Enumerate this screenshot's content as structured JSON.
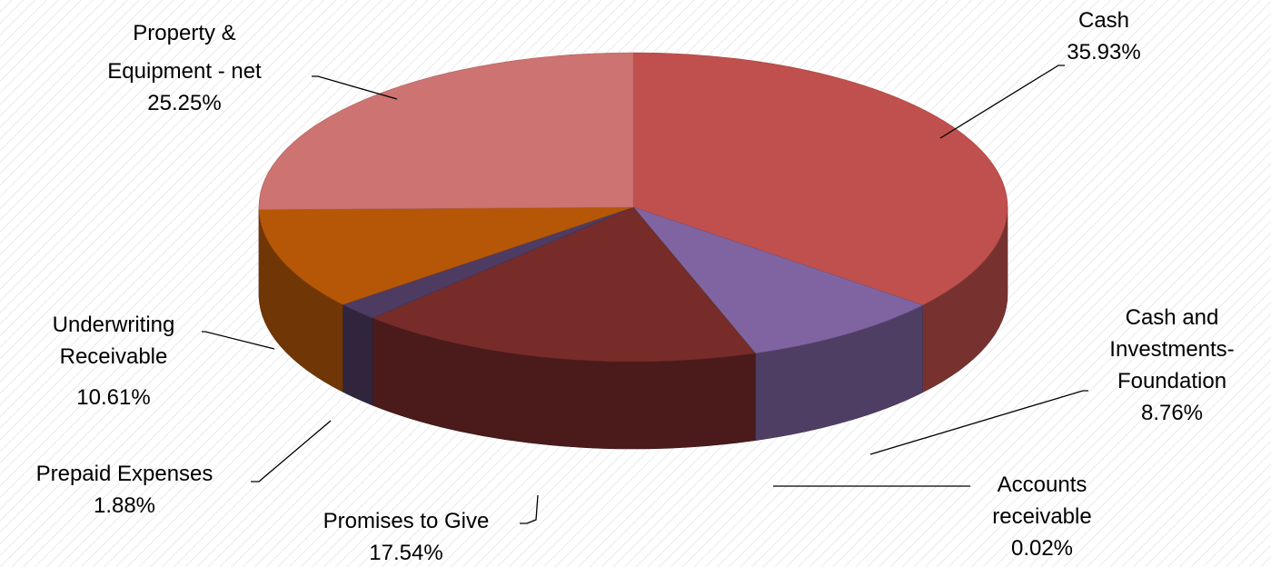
{
  "chart_data": {
    "type": "pie",
    "style": "3d-exploded-none",
    "legend": "none",
    "slices": [
      {
        "label": "Cash",
        "value": 35.93,
        "display": "35.93%",
        "color": "#C0504D"
      },
      {
        "label": "Cash and Investments-Foundation",
        "value": 8.76,
        "display": "8.76%",
        "color": "#8064A2"
      },
      {
        "label": "Accounts receivable",
        "value": 0.02,
        "display": "0.02%",
        "color": "#4BACC6"
      },
      {
        "label": "Promises to Give",
        "value": 17.54,
        "display": "17.54%",
        "color": "#772C2A"
      },
      {
        "label": "Prepaid Expenses",
        "value": 1.88,
        "display": "1.88%",
        "color": "#4D3B62"
      },
      {
        "label": "Underwriting Receivable",
        "value": 10.61,
        "display": "10.61%",
        "color": "#B65708"
      },
      {
        "label": "Property & Equipment - net",
        "value": 25.25,
        "display": "25.25%",
        "color": "#CD7371"
      }
    ]
  }
}
